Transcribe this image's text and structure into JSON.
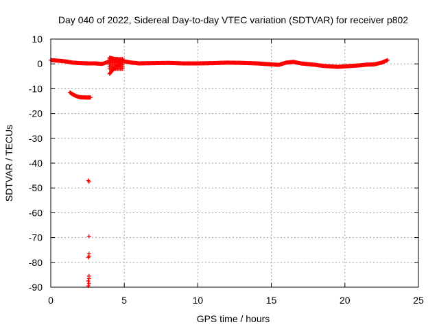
{
  "chart_data": {
    "type": "scatter",
    "title": "Day 040 of 2022, Sidereal Day-to-day VTEC variation (SDTVAR) for receiver p802",
    "xlabel": "GPS time / hours",
    "ylabel": "SDTVAR / TECUs",
    "xlim": [
      0,
      25
    ],
    "ylim": [
      -90,
      10
    ],
    "xticks": [
      0,
      5,
      10,
      15,
      20,
      25
    ],
    "yticks": [
      10,
      0,
      -10,
      -20,
      -30,
      -40,
      -50,
      -60,
      -70,
      -80,
      -90
    ],
    "grid": true,
    "marker": "+",
    "series_color": "#ff0000",
    "series": [
      {
        "name": "SDTVAR",
        "main_trace": [
          [
            0.0,
            1.5
          ],
          [
            0.5,
            1.3
          ],
          [
            1.0,
            1.0
          ],
          [
            1.5,
            0.5
          ],
          [
            2.0,
            0.3
          ],
          [
            2.5,
            0.2
          ],
          [
            3.0,
            0.2
          ],
          [
            3.5,
            0.0
          ],
          [
            4.0,
            1.0
          ],
          [
            4.5,
            1.5
          ],
          [
            5.0,
            1.0
          ],
          [
            5.5,
            0.5
          ],
          [
            6.0,
            0.2
          ],
          [
            7.0,
            0.3
          ],
          [
            8.0,
            0.4
          ],
          [
            9.0,
            0.2
          ],
          [
            10.0,
            0.2
          ],
          [
            11.0,
            0.3
          ],
          [
            12.0,
            0.5
          ],
          [
            13.0,
            0.4
          ],
          [
            14.0,
            0.2
          ],
          [
            15.0,
            -0.2
          ],
          [
            15.5,
            -0.4
          ],
          [
            16.0,
            0.5
          ],
          [
            16.5,
            0.8
          ],
          [
            17.0,
            0.2
          ],
          [
            17.5,
            -0.1
          ],
          [
            18.0,
            -0.4
          ],
          [
            18.5,
            -0.8
          ],
          [
            19.0,
            -1.0
          ],
          [
            19.5,
            -1.2
          ],
          [
            20.0,
            -1.0
          ],
          [
            20.5,
            -0.8
          ],
          [
            21.0,
            -0.6
          ],
          [
            21.5,
            -0.3
          ],
          [
            22.0,
            -0.2
          ],
          [
            22.5,
            0.5
          ],
          [
            22.9,
            1.5
          ]
        ],
        "band_4_5_hours": [
          [
            4.0,
            -4.0
          ],
          [
            4.2,
            -2.5
          ],
          [
            4.4,
            -1.5
          ],
          [
            4.6,
            -0.8
          ],
          [
            4.8,
            -0.3
          ],
          [
            4.0,
            2.5
          ],
          [
            4.3,
            2.0
          ],
          [
            4.6,
            1.5
          ],
          [
            4.9,
            1.2
          ]
        ],
        "descending_arc": [
          [
            1.3,
            -11.5
          ],
          [
            1.5,
            -12.3
          ],
          [
            1.7,
            -12.9
          ],
          [
            1.9,
            -13.3
          ],
          [
            2.1,
            -13.5
          ],
          [
            2.3,
            -13.5
          ],
          [
            2.5,
            -13.6
          ],
          [
            2.7,
            -13.5
          ]
        ],
        "isolated_points": [
          [
            2.6,
            -47.5
          ],
          [
            2.55,
            -47.0
          ],
          [
            2.6,
            -69.5
          ],
          [
            2.6,
            -76.5
          ],
          [
            2.6,
            -77.5
          ],
          [
            2.55,
            -78.0
          ],
          [
            2.6,
            -85.5
          ],
          [
            2.6,
            -86.5
          ],
          [
            2.55,
            -87.5
          ],
          [
            2.6,
            -88.5
          ],
          [
            2.55,
            -89.5
          ]
        ]
      }
    ]
  }
}
